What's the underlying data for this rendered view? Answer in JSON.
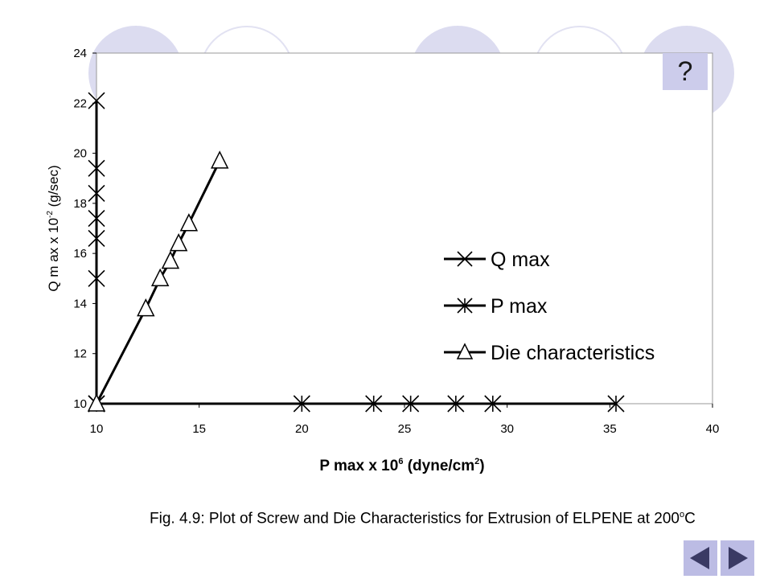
{
  "chart_data": {
    "type": "scatter",
    "xlabel": "P max x 10",
    "xlabel_sup": "6",
    "xlabel_unit": " (dyne/cm",
    "xlabel_unit_sup": "2",
    "xlabel_end": ")",
    "ylabel": "Q m ax x 10",
    "ylabel_sup": "-2",
    "ylabel_unit": " (g/sec)",
    "xlim": [
      10,
      40
    ],
    "ylim": [
      10,
      24
    ],
    "xticks": [
      "10",
      "15",
      "20",
      "25",
      "30",
      "35",
      "40"
    ],
    "yticks": [
      "10",
      "12",
      "14",
      "16",
      "18",
      "20",
      "22",
      "24"
    ],
    "grid": false,
    "legend_position": "right",
    "series": [
      {
        "name": "Q max",
        "marker": "x",
        "x": [
          10,
          10,
          10,
          10,
          10,
          10,
          10
        ],
        "y": [
          10,
          15,
          16.6,
          17.4,
          18.4,
          19.4,
          22.1
        ]
      },
      {
        "name": "P max",
        "marker": "asterisk",
        "x": [
          10,
          20,
          23.5,
          25.3,
          27.5,
          29.3,
          35.3
        ],
        "y": [
          10,
          10,
          10,
          10,
          10,
          10,
          10
        ]
      },
      {
        "name": "Die characteristics",
        "marker": "triangle",
        "x": [
          10,
          12.4,
          13.1,
          13.6,
          14,
          14.5,
          16
        ],
        "y": [
          10,
          13.8,
          15,
          15.7,
          16.4,
          17.2,
          19.7
        ]
      }
    ]
  },
  "caption": {
    "text": "Fig. 4.9: Plot of Screw  and Die Characteristics for Extrusion of ELPENE at 200",
    "sup": "o",
    "end": "C"
  },
  "ui": {
    "help_label": "?",
    "nav_colors": {
      "button": "#bcbce4",
      "arrow": "#3a3a64"
    }
  }
}
